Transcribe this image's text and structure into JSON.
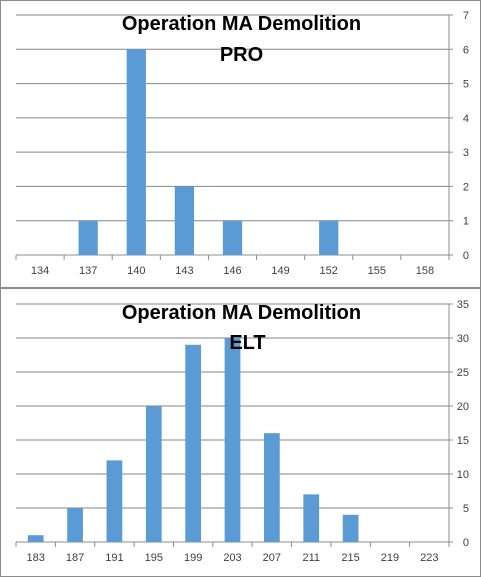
{
  "charts": [
    {
      "title": "Operation MA Demolition",
      "subtitle": "PRO",
      "type": "bar",
      "categories": [
        "134",
        "137",
        "140",
        "143",
        "146",
        "149",
        "152",
        "155",
        "158"
      ],
      "values": [
        0,
        1,
        6,
        2,
        1,
        0,
        1,
        0,
        0
      ],
      "ylim": [
        0,
        7
      ],
      "yticks": [
        0,
        1,
        2,
        3,
        4,
        5,
        6,
        7
      ],
      "y_axis_side": "right",
      "grid": true,
      "bar_color": "#5b9bd5"
    },
    {
      "title": "Operation MA Demolition",
      "subtitle": "ELT",
      "type": "bar",
      "categories": [
        "183",
        "187",
        "191",
        "195",
        "199",
        "203",
        "207",
        "211",
        "215",
        "219",
        "223"
      ],
      "values": [
        1,
        5,
        12,
        20,
        29,
        30,
        16,
        7,
        4,
        0,
        0
      ],
      "ylim": [
        0,
        35
      ],
      "yticks": [
        0,
        5,
        10,
        15,
        20,
        25,
        30,
        35
      ],
      "y_axis_side": "right",
      "grid": true,
      "bar_color": "#5b9bd5"
    }
  ]
}
